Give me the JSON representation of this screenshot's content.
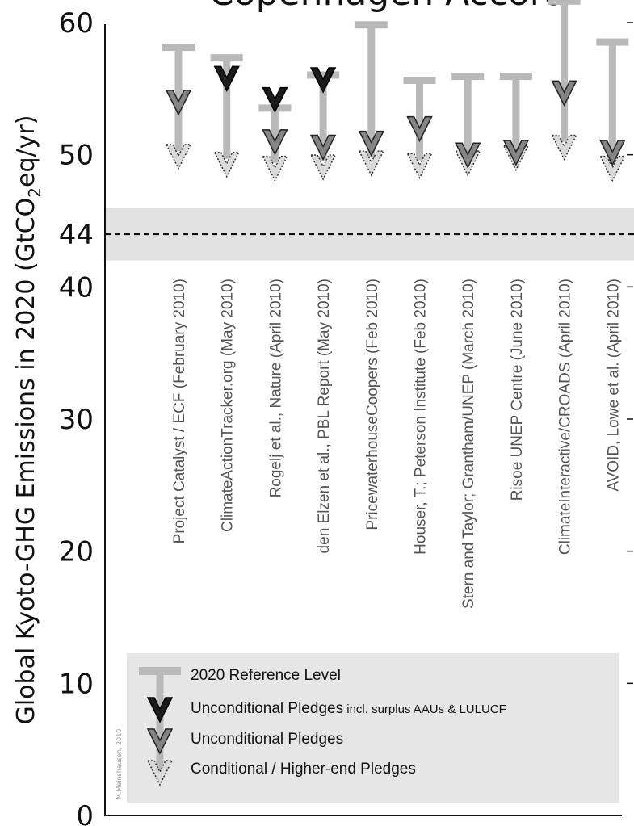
{
  "chart_data": {
    "type": "scatter",
    "title": "Copenhagen Accord",
    "ylabel_main": "Global Kyoto-GHG Emissions in 2020 (GtCO",
    "ylabel_sub": "2",
    "ylabel_tail": "eq/yr)",
    "ylim": [
      0,
      60
    ],
    "yticks": [
      "0",
      "10",
      "20",
      "30",
      "40",
      "44",
      "50",
      "60"
    ],
    "yticks_values": [
      0,
      10,
      20,
      30,
      40,
      44,
      50,
      60
    ],
    "target_line": 44,
    "target_band": [
      42,
      46
    ],
    "categories": [
      "Project Catalyst / ECF (February 2010)",
      "ClimateActionTracker.org (May 2010)",
      "Rogelj et al., Nature (April 2010)",
      "den Elzen et al., PBL Report (May 2010)",
      "PricewaterhouseCoopers (Feb 2010)",
      "Houser, T.; Peterson Institute (Feb 2010)",
      "Stern and Taylor; Grantham/UNEP (March 2010)",
      "Risoe UNEP Centre (June 2010)",
      "ClimateInteractive/CROADS (April 2010)",
      "AVOID, Lowe et al. (April 2010)"
    ],
    "series": [
      {
        "name": "2020 Reference Level",
        "values": [
          58.1,
          57.3,
          53.5,
          56.0,
          59.8,
          55.6,
          55.9,
          55.9,
          61.6,
          58.5
        ]
      },
      {
        "name": "Unconditional Pledges incl. surplus AAUs & LULUCF",
        "values": [
          null,
          55.7,
          54.1,
          55.6,
          null,
          null,
          null,
          null,
          null,
          null
        ]
      },
      {
        "name": "Unconditional Pledges",
        "values": [
          53.9,
          null,
          50.9,
          50.5,
          50.8,
          51.9,
          49.9,
          50.1,
          54.6,
          50.1
        ]
      },
      {
        "name": "Conditional / Higher-end Pledges",
        "values": [
          49.8,
          49.2,
          48.9,
          49.0,
          49.3,
          49.1,
          49.3,
          49.7,
          50.5,
          48.9
        ]
      }
    ],
    "colors": {
      "reference": "#b9b9b9",
      "unconditional_surplus": "#1c1c1c",
      "unconditional": "#858585",
      "conditional": "#dadada",
      "band": "#e2e2e2",
      "legend_bg": "#e6e6e6"
    }
  },
  "legend": {
    "reference_label": "2020 Reference Level",
    "surplus_label_main": "Unconditional Pledges",
    "surplus_label_small": " incl.  surplus AAUs & LULUCF",
    "unconditional_label": "Unconditional Pledges",
    "conditional_label": "Conditional / Higher-end Pledges"
  },
  "credit": "M.Meinshausen, 2010"
}
